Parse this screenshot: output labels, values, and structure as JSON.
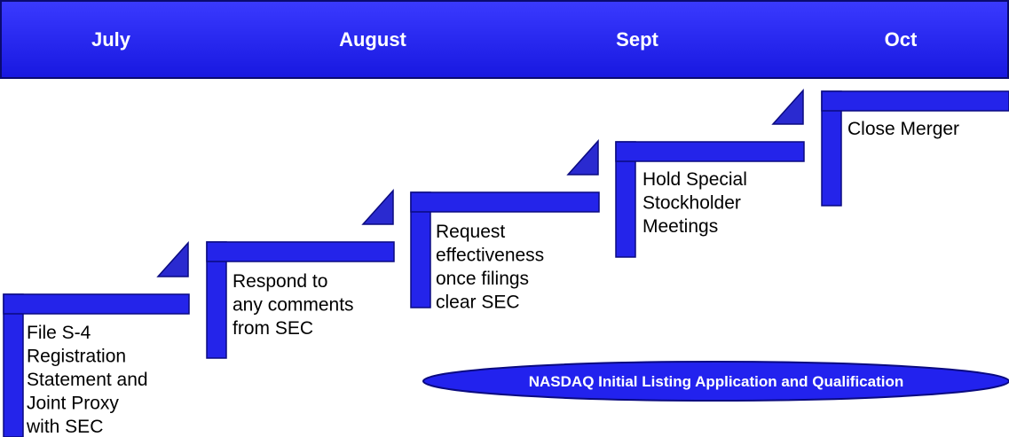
{
  "header": {
    "months": [
      "July",
      "August",
      "Sept",
      "Oct"
    ]
  },
  "steps": [
    {
      "lines": [
        "File S-4",
        "Registration",
        "Statement and",
        "Joint Proxy",
        "with SEC"
      ]
    },
    {
      "lines": [
        "Respond to",
        "any comments",
        "from SEC"
      ]
    },
    {
      "lines": [
        "Request",
        "effectiveness",
        "once filings",
        "clear SEC"
      ]
    },
    {
      "lines": [
        "Hold Special",
        "Stockholder",
        "Meetings"
      ]
    },
    {
      "lines": [
        "Close Merger"
      ]
    }
  ],
  "banner": {
    "label": "NASDAQ Initial Listing Application and Qualification"
  }
}
